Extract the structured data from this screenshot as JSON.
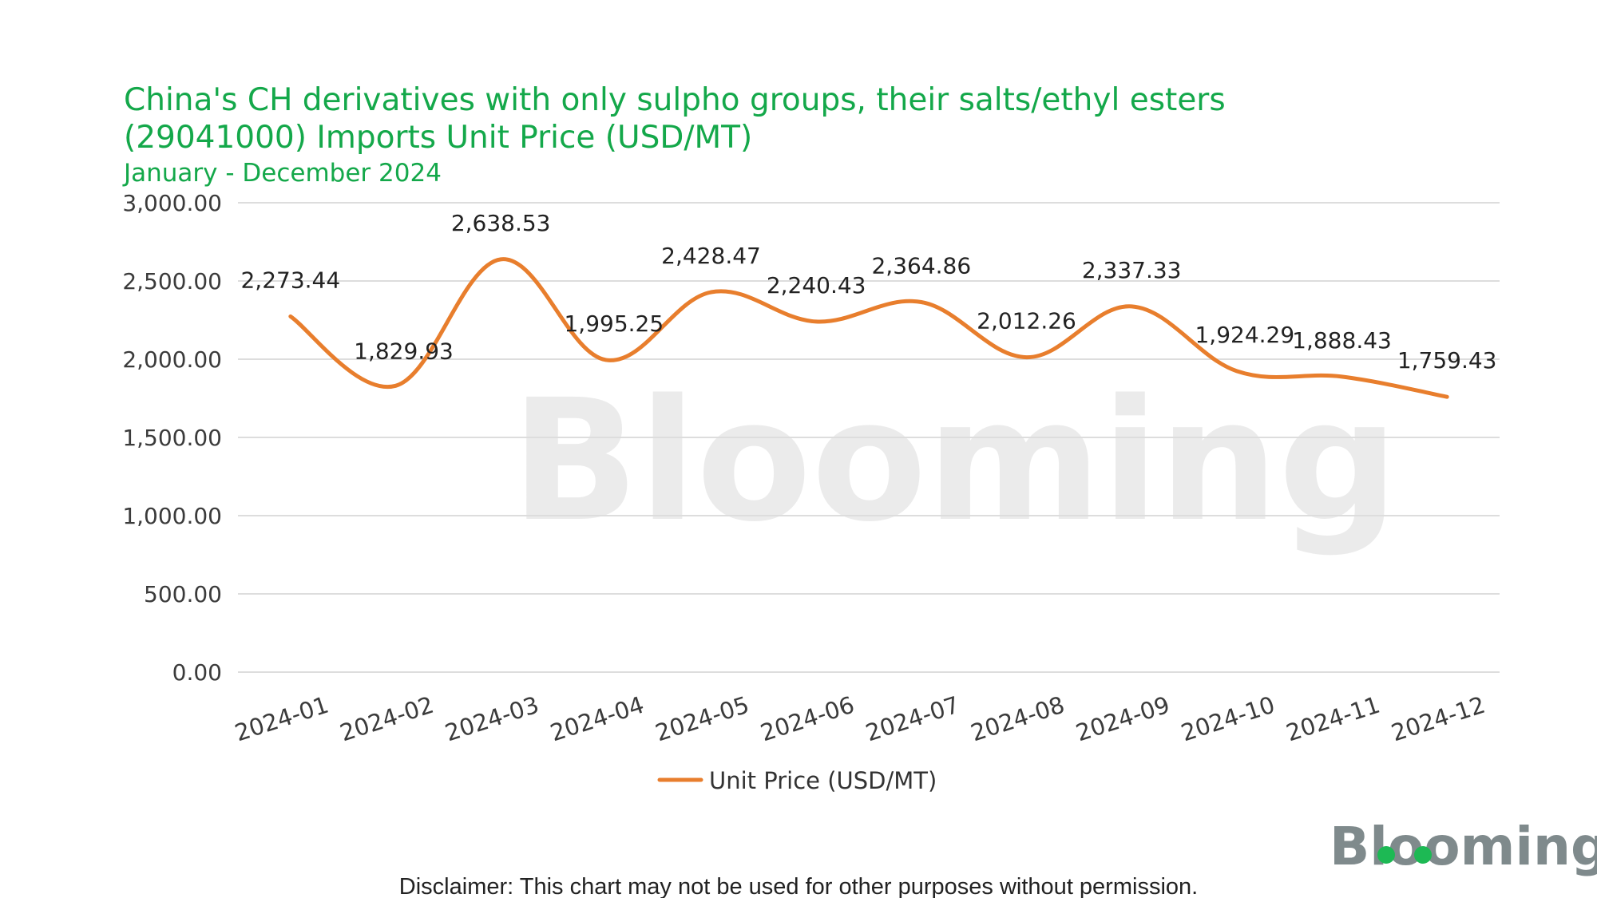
{
  "chart_data": {
    "type": "line",
    "title": "China's CH derivatives with only sulpho groups, their salts/ethyl esters",
    "title_line2": "(29041000) Imports Unit Price (USD/MT)",
    "subtitle": "January - December 2024",
    "categories": [
      "2024-01",
      "2024-02",
      "2024-03",
      "2024-04",
      "2024-05",
      "2024-06",
      "2024-07",
      "2024-08",
      "2024-09",
      "2024-10",
      "2024-11",
      "2024-12"
    ],
    "series": [
      {
        "name": "Unit Price (USD/MT)",
        "values": [
          2273.44,
          1829.93,
          2638.53,
          1995.25,
          2428.47,
          2240.43,
          2364.86,
          2012.26,
          2337.33,
          1924.29,
          1888.43,
          1759.43
        ],
        "labels": [
          "2,273.44",
          "1,829.93",
          "2,638.53",
          "1,995.25",
          "2,428.47",
          "2,240.43",
          "2,364.86",
          "2,012.26",
          "2,337.33",
          "1,924.29",
          "1,888.43",
          "1,759.43"
        ],
        "color": "#e87e2d"
      }
    ],
    "y_ticks": [
      0,
      500,
      1000,
      1500,
      2000,
      2500,
      3000
    ],
    "y_tick_labels": [
      "0.00",
      "500.00",
      "1,000.00",
      "1,500.00",
      "2,000.00",
      "2,500.00",
      "3,000.00"
    ],
    "ylim": [
      0,
      3000
    ],
    "grid": true,
    "legend_position": "bottom-center"
  },
  "branding": {
    "watermark": "Blooming",
    "logo": "Blooming"
  },
  "footer": {
    "disclaimer": "Disclaimer: This chart may not be used for other purposes without permission."
  },
  "colors": {
    "title": "#14a84a",
    "line": "#e87e2d",
    "grid": "#dddddd",
    "logo_green": "#1db954"
  }
}
